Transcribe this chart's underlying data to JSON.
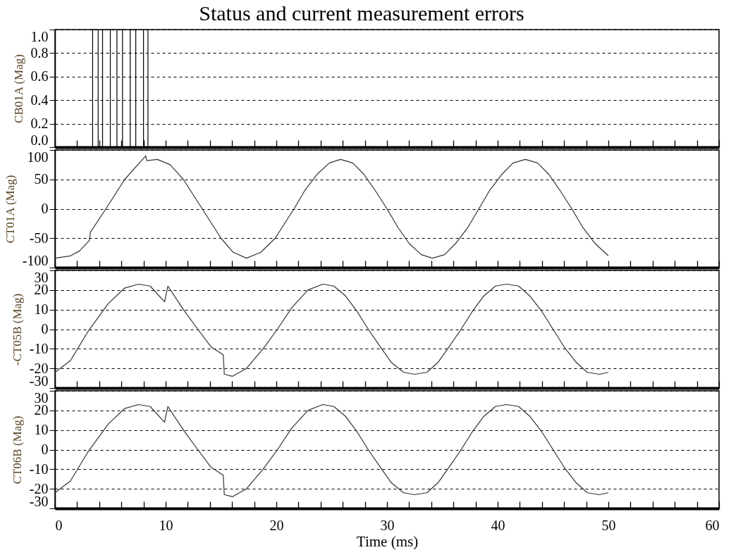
{
  "chart_data": [
    {
      "type": "line",
      "title": "Status and current measurement errors",
      "ylabel": "CB01A  (Mag)",
      "x": [
        0,
        3.4,
        3.4,
        3.9,
        3.9,
        4.3,
        4.3,
        5.0,
        5.0,
        5.6,
        5.6,
        6.1,
        6.1,
        6.8,
        6.8,
        7.3,
        7.3,
        8.0,
        8.0,
        8.4,
        8.4,
        60
      ],
      "series": [
        {
          "color": "#000000",
          "values": [
            0,
            0,
            1,
            1,
            0,
            0,
            1,
            1,
            0,
            0,
            1,
            1,
            0,
            0,
            1,
            1,
            0,
            0,
            1,
            1,
            0,
            0
          ]
        }
      ],
      "xlim": [
        0,
        60
      ],
      "xticks": [
        {
          "value": 0,
          "label": null
        },
        {
          "value": 2,
          "label": null
        },
        {
          "value": 4,
          "label": null
        },
        {
          "value": 6,
          "label": null
        },
        {
          "value": 8,
          "label": null
        },
        {
          "value": 10,
          "label": null
        },
        {
          "value": 12,
          "label": null
        },
        {
          "value": 14,
          "label": null
        },
        {
          "value": 16,
          "label": null
        },
        {
          "value": 18,
          "label": null
        },
        {
          "value": 20,
          "label": null
        },
        {
          "value": 22,
          "label": null
        },
        {
          "value": 24,
          "label": null
        },
        {
          "value": 26,
          "label": null
        },
        {
          "value": 28,
          "label": null
        },
        {
          "value": 30,
          "label": null
        },
        {
          "value": 32,
          "label": null
        },
        {
          "value": 34,
          "label": null
        },
        {
          "value": 36,
          "label": null
        },
        {
          "value": 38,
          "label": null
        },
        {
          "value": 40,
          "label": null
        },
        {
          "value": 42,
          "label": null
        },
        {
          "value": 44,
          "label": null
        },
        {
          "value": 46,
          "label": null
        },
        {
          "value": 48,
          "label": null
        },
        {
          "value": 50,
          "label": null
        },
        {
          "value": 52,
          "label": null
        },
        {
          "value": 54,
          "label": null
        },
        {
          "value": 56,
          "label": null
        },
        {
          "value": 58,
          "label": null
        },
        {
          "value": 60,
          "label": null
        }
      ],
      "ylim": [
        0,
        1
      ],
      "yticks": [
        {
          "value": 0,
          "label": "0.0"
        },
        {
          "value": 0.2,
          "label": "0.2"
        },
        {
          "value": 0.4,
          "label": "0.4"
        },
        {
          "value": 0.6,
          "label": "0.6"
        },
        {
          "value": 0.8,
          "label": "0.8"
        },
        {
          "value": 1,
          "label": "1.0"
        }
      ],
      "grid": "y",
      "tick_labels": "y"
    },
    {
      "type": "line",
      "ylabel": "CT01A  (Mag)",
      "x": [
        0,
        1.4,
        2.2,
        3.1,
        3.2,
        4.6,
        6.3,
        8.2,
        8.3,
        9.25,
        10.4,
        11.6,
        13.3,
        15.0,
        16.1,
        17.3,
        18.6,
        19.9,
        21.6,
        22.6,
        23.7,
        24.8,
        25.8,
        26.9,
        27.9,
        28.9,
        30.0,
        31.0,
        32.0,
        33.1,
        34.1,
        35.2,
        36.2,
        37.3,
        38.3,
        39.3,
        40.4,
        41.4,
        42.5,
        43.6,
        44.6,
        45.6,
        46.7,
        47.7,
        48.8,
        50
      ],
      "series": [
        {
          "color": "#333333",
          "values": [
            -84,
            -80,
            -72,
            -54,
            -40,
            0,
            50,
            90,
            82,
            84,
            75,
            50,
            0,
            -50,
            -74,
            -84,
            -74,
            -50,
            0,
            32,
            59,
            78,
            84,
            78,
            59,
            32,
            0,
            -32,
            -59,
            -78,
            -84,
            -78,
            -59,
            -32,
            0,
            32,
            59,
            78,
            84,
            78,
            59,
            32,
            0,
            -32,
            -59,
            -80
          ]
        }
      ],
      "xlim": [
        0,
        60
      ],
      "xticks": [
        {
          "value": 0,
          "label": null
        },
        {
          "value": 2,
          "label": null
        },
        {
          "value": 4,
          "label": null
        },
        {
          "value": 6,
          "label": null
        },
        {
          "value": 8,
          "label": null
        },
        {
          "value": 10,
          "label": null
        },
        {
          "value": 12,
          "label": null
        },
        {
          "value": 14,
          "label": null
        },
        {
          "value": 16,
          "label": null
        },
        {
          "value": 18,
          "label": null
        },
        {
          "value": 20,
          "label": null
        },
        {
          "value": 22,
          "label": null
        },
        {
          "value": 24,
          "label": null
        },
        {
          "value": 26,
          "label": null
        },
        {
          "value": 28,
          "label": null
        },
        {
          "value": 30,
          "label": null
        },
        {
          "value": 32,
          "label": null
        },
        {
          "value": 34,
          "label": null
        },
        {
          "value": 36,
          "label": null
        },
        {
          "value": 38,
          "label": null
        },
        {
          "value": 40,
          "label": null
        },
        {
          "value": 42,
          "label": null
        },
        {
          "value": 44,
          "label": null
        },
        {
          "value": 46,
          "label": null
        },
        {
          "value": 48,
          "label": null
        },
        {
          "value": 50,
          "label": null
        },
        {
          "value": 52,
          "label": null
        },
        {
          "value": 54,
          "label": null
        },
        {
          "value": 56,
          "label": null
        },
        {
          "value": 58,
          "label": null
        },
        {
          "value": 60,
          "label": null
        }
      ],
      "ylim": [
        -100,
        100
      ],
      "yticks": [
        -100,
        -50,
        0,
        50,
        100
      ],
      "grid": "y",
      "tick_labels": "y"
    },
    {
      "type": "line",
      "ylabel": "-CT05B  (Mag)",
      "x": [
        0,
        1.4,
        3.0,
        4.8,
        6.3,
        7.55,
        8.6,
        9.9,
        10.2,
        11.6,
        12.9,
        14.1,
        15.2,
        15.3,
        16.05,
        17.3,
        18.8,
        20.1,
        21.4,
        22.85,
        24.2,
        25.2,
        26.25,
        27.3,
        28.3,
        29.4,
        30.4,
        31.5,
        32.5,
        33.6,
        34.6,
        35.6,
        36.7,
        37.7,
        38.75,
        39.8,
        40.8,
        41.9,
        42.9,
        44.0,
        45.0,
        46.0,
        47.1,
        48.1,
        49.2,
        50
      ],
      "series": [
        {
          "color": "#333333",
          "values": [
            -22,
            -16,
            -1,
            13,
            21,
            23,
            22,
            14,
            22,
            10,
            0,
            -9,
            -13,
            -23,
            -24,
            -20,
            -10,
            0,
            11,
            20,
            23,
            22,
            17,
            9,
            0,
            -9,
            -17,
            -22,
            -23,
            -22,
            -17,
            -9,
            0,
            9,
            17,
            22,
            23,
            22,
            17,
            9,
            0,
            -9,
            -17,
            -22,
            -23,
            -22
          ]
        }
      ],
      "xlim": [
        0,
        60
      ],
      "xticks": [
        {
          "value": 0,
          "label": null
        },
        {
          "value": 2,
          "label": null
        },
        {
          "value": 4,
          "label": null
        },
        {
          "value": 6,
          "label": null
        },
        {
          "value": 8,
          "label": null
        },
        {
          "value": 10,
          "label": null
        },
        {
          "value": 12,
          "label": null
        },
        {
          "value": 14,
          "label": null
        },
        {
          "value": 16,
          "label": null
        },
        {
          "value": 18,
          "label": null
        },
        {
          "value": 20,
          "label": null
        },
        {
          "value": 22,
          "label": null
        },
        {
          "value": 24,
          "label": null
        },
        {
          "value": 26,
          "label": null
        },
        {
          "value": 28,
          "label": null
        },
        {
          "value": 30,
          "label": null
        },
        {
          "value": 32,
          "label": null
        },
        {
          "value": 34,
          "label": null
        },
        {
          "value": 36,
          "label": null
        },
        {
          "value": 38,
          "label": null
        },
        {
          "value": 40,
          "label": null
        },
        {
          "value": 42,
          "label": null
        },
        {
          "value": 44,
          "label": null
        },
        {
          "value": 46,
          "label": null
        },
        {
          "value": 48,
          "label": null
        },
        {
          "value": 50,
          "label": null
        },
        {
          "value": 52,
          "label": null
        },
        {
          "value": 54,
          "label": null
        },
        {
          "value": 56,
          "label": null
        },
        {
          "value": 58,
          "label": null
        },
        {
          "value": 60,
          "label": null
        }
      ],
      "ylim": [
        -30,
        30
      ],
      "yticks": [
        -30,
        -20,
        -10,
        0,
        10,
        20,
        30
      ],
      "grid": "y",
      "tick_labels": "y"
    },
    {
      "type": "line",
      "ylabel": "CT06B  (Mag)",
      "xlabel": "Time (ms)",
      "x": [
        0,
        1.4,
        3.0,
        4.8,
        6.3,
        7.55,
        8.6,
        9.9,
        10.2,
        11.6,
        12.9,
        14.1,
        15.2,
        15.3,
        16.05,
        17.3,
        18.8,
        20.1,
        21.4,
        22.85,
        24.2,
        25.2,
        26.25,
        27.3,
        28.3,
        29.4,
        30.4,
        31.5,
        32.5,
        33.6,
        34.6,
        35.6,
        36.7,
        37.7,
        38.75,
        39.8,
        40.8,
        41.9,
        42.9,
        44.0,
        45.0,
        46.0,
        47.1,
        48.1,
        49.2,
        50
      ],
      "series": [
        {
          "color": "#333333",
          "values": [
            -22,
            -16,
            -1,
            13,
            21,
            23,
            22,
            14,
            22,
            10,
            0,
            -9,
            -13,
            -23,
            -24,
            -20,
            -10,
            0,
            11,
            20,
            23,
            22,
            17,
            9,
            0,
            -9,
            -17,
            -22,
            -23,
            -22,
            -17,
            -9,
            0,
            9,
            17,
            22,
            23,
            22,
            17,
            9,
            0,
            -9,
            -17,
            -22,
            -23,
            -22
          ]
        }
      ],
      "xlim": [
        0,
        60
      ],
      "xticks": [
        0,
        {
          "value": 2,
          "label": null
        },
        {
          "value": 4,
          "label": null
        },
        {
          "value": 6,
          "label": null
        },
        {
          "value": 8,
          "label": null
        },
        10,
        {
          "value": 12,
          "label": null
        },
        {
          "value": 14,
          "label": null
        },
        {
          "value": 16,
          "label": null
        },
        {
          "value": 18,
          "label": null
        },
        20,
        {
          "value": 22,
          "label": null
        },
        {
          "value": 24,
          "label": null
        },
        {
          "value": 26,
          "label": null
        },
        {
          "value": 28,
          "label": null
        },
        30,
        {
          "value": 32,
          "label": null
        },
        {
          "value": 34,
          "label": null
        },
        {
          "value": 36,
          "label": null
        },
        {
          "value": 38,
          "label": null
        },
        40,
        {
          "value": 42,
          "label": null
        },
        {
          "value": 44,
          "label": null
        },
        {
          "value": 46,
          "label": null
        },
        {
          "value": 48,
          "label": null
        },
        50,
        {
          "value": 52,
          "label": null
        },
        {
          "value": 54,
          "label": null
        },
        {
          "value": 56,
          "label": null
        },
        {
          "value": 58,
          "label": null
        },
        60
      ],
      "ylim": [
        -30,
        30
      ],
      "yticks": [
        -30,
        -20,
        -10,
        0,
        10,
        20,
        30
      ],
      "grid": "y"
    }
  ]
}
